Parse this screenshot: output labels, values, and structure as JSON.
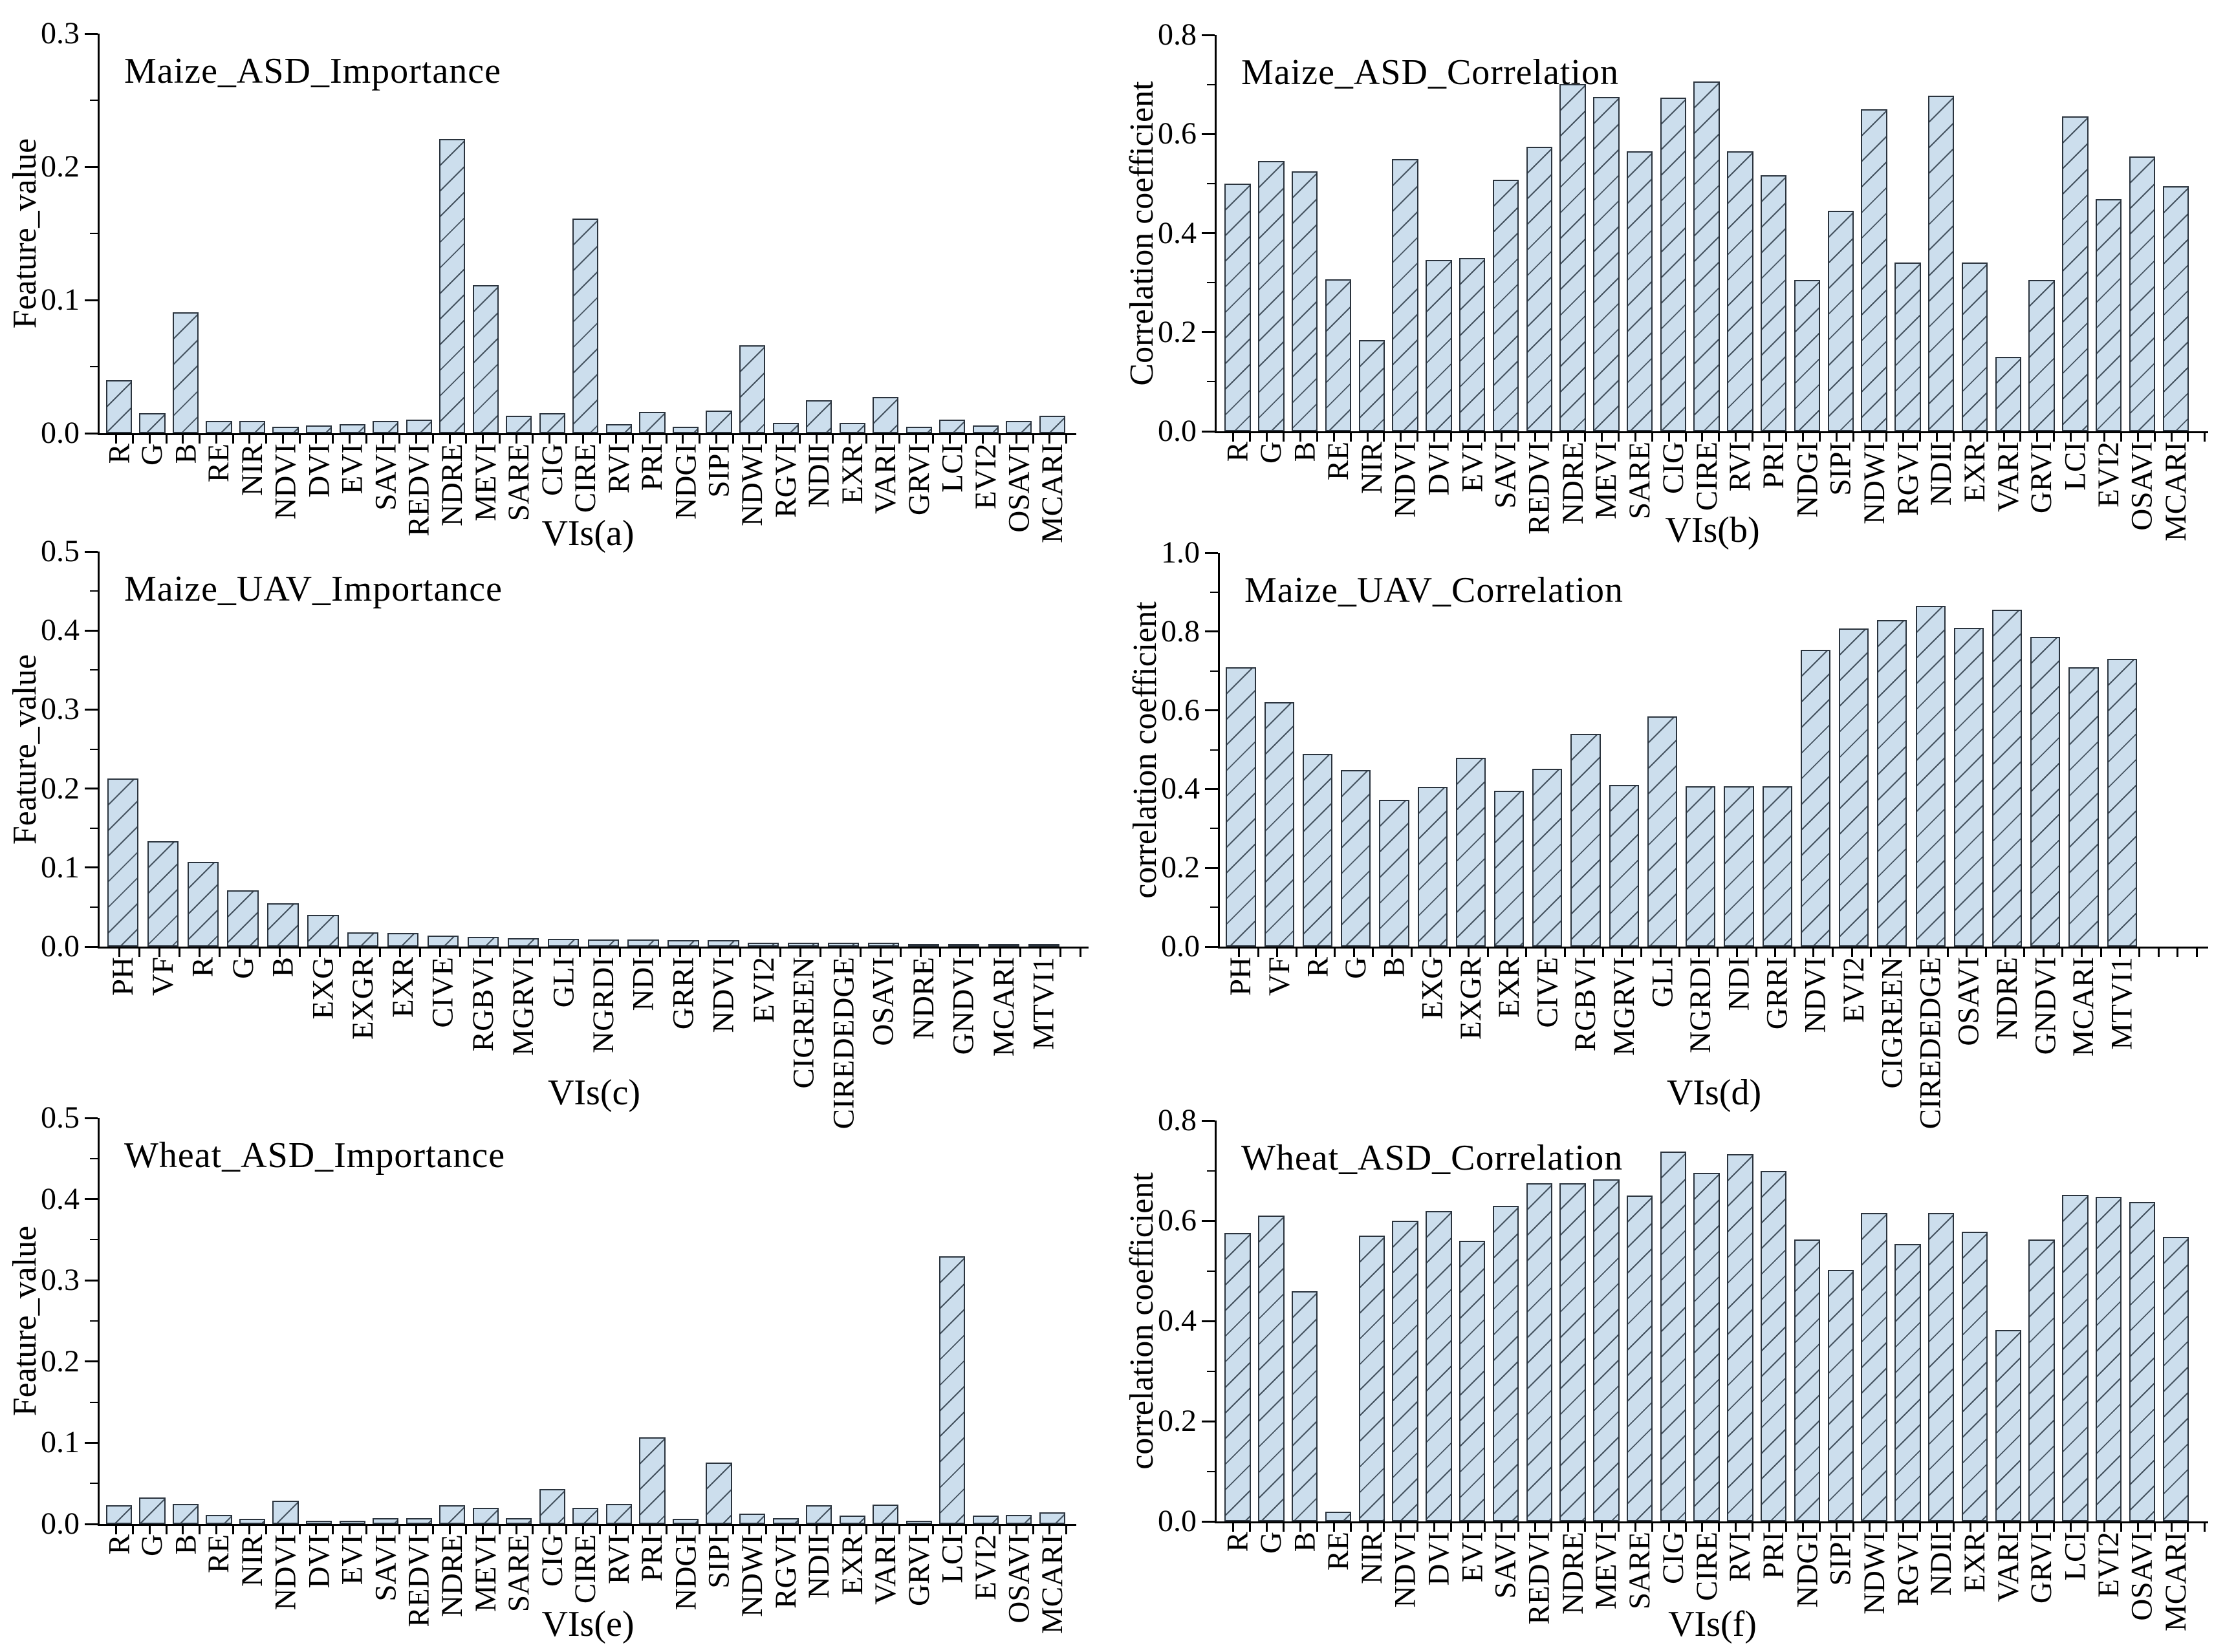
{
  "figure": {
    "description_title": "Feature importance and correlation coefficient bar charts for vegetation indices (VIs)",
    "background": "#ffffff"
  },
  "style": {
    "bar_fill": "#ccdeed",
    "bar_edge": "#2a333d",
    "hatch_color": "#44525f",
    "axis_color": "#000000",
    "text_color": "#000000"
  },
  "chart_data": [
    {
      "id": "a",
      "type": "bar",
      "title": "Maize_ASD_Importance",
      "ylabel": "Feature_value",
      "xlabel": "VIs(a)",
      "ylim": [
        0,
        0.3
      ],
      "ytick_step": 0.1,
      "grid": false,
      "legend": "none",
      "categories": [
        "R",
        "G",
        "B",
        "RE",
        "NIR",
        "NDVI",
        "DVI",
        "EVI",
        "SAVI",
        "REDVI",
        "NDRE",
        "MEVI",
        "SARE",
        "CIG",
        "CIRE",
        "RVI",
        "PRI",
        "NDGI",
        "SIPI",
        "NDWI",
        "RGVI",
        "NDII",
        "EXR",
        "VARI",
        "GRVI",
        "LCI",
        "EVI2",
        "OSAVI",
        "MCARI"
      ],
      "values": [
        0.04,
        0.015,
        0.091,
        0.009,
        0.009,
        0.005,
        0.006,
        0.007,
        0.009,
        0.01,
        0.221,
        0.111,
        0.013,
        0.015,
        0.161,
        0.007,
        0.016,
        0.005,
        0.017,
        0.066,
        0.008,
        0.025,
        0.008,
        0.027,
        0.005,
        0.01,
        0.006,
        0.009,
        0.013
      ]
    },
    {
      "id": "b",
      "type": "bar",
      "title": "Maize_ASD_Correlation",
      "ylabel": "Correlation coefficient",
      "xlabel": "VIs(b)",
      "ylim": [
        0,
        0.8
      ],
      "ytick_step": 0.2,
      "grid": false,
      "legend": "none",
      "categories": [
        "R",
        "G",
        "B",
        "RE",
        "NIR",
        "NDVI",
        "DVI",
        "EVI",
        "SAVI",
        "REDVI",
        "NDRE",
        "MEVI",
        "SARE",
        "CIG",
        "CIRE",
        "RVI",
        "PRI",
        "NDGI",
        "SIPI",
        "NDWI",
        "RGVI",
        "NDII",
        "EXR",
        "VARI",
        "GRVI",
        "LCI",
        "EVI2",
        "OSAVI",
        "MCARI"
      ],
      "values": [
        0.5,
        0.545,
        0.525,
        0.307,
        0.184,
        0.549,
        0.346,
        0.35,
        0.508,
        0.574,
        0.701,
        0.675,
        0.565,
        0.673,
        0.706,
        0.565,
        0.517,
        0.306,
        0.445,
        0.65,
        0.34,
        0.677,
        0.341,
        0.15,
        0.306,
        0.636,
        0.468,
        0.555,
        0.494
      ]
    },
    {
      "id": "c",
      "type": "bar",
      "title": "Maize_UAV_Importance",
      "ylabel": "Feature_value",
      "xlabel": "VIs(c)",
      "ylim": [
        0,
        0.5
      ],
      "ytick_step": 0.1,
      "grid": false,
      "legend": "none",
      "categories": [
        "PH",
        "VF",
        "R",
        "G",
        "B",
        "EXG",
        "EXGR",
        "EXR",
        "CIVE",
        "RGBVI",
        "MGRVI",
        "GLI",
        "NGRDI",
        "NDI",
        "GRRI",
        "NDVI",
        "EVI2",
        "CIGREEN",
        "CIREDEDGE",
        "OSAVI",
        "NDRE",
        "GNDVI",
        "MCARI",
        "MTVI1"
      ],
      "values": [
        0.213,
        0.133,
        0.107,
        0.071,
        0.055,
        0.04,
        0.018,
        0.017,
        0.014,
        0.012,
        0.011,
        0.01,
        0.009,
        0.009,
        0.008,
        0.008,
        0.005,
        0.005,
        0.005,
        0.005,
        0.003,
        0.003,
        0.003,
        0.002
      ]
    },
    {
      "id": "d",
      "type": "bar",
      "title": "Maize_UAV_Correlation",
      "ylabel": "correlation coefficient",
      "xlabel": "VIs(d)",
      "ylim": [
        0,
        1.0
      ],
      "ytick_step": 0.2,
      "grid": false,
      "legend": "none",
      "categories": [
        "PH",
        "VF",
        "R",
        "G",
        "B",
        "EXG",
        "EXGR",
        "EXR",
        "CIVE",
        "RGBVI",
        "MGRVI",
        "GLI",
        "NGRDI",
        "NDI",
        "GRRI",
        "NDVI",
        "EVI2",
        "CIGREEN",
        "CIREDEDGE",
        "OSAVI",
        "NDRE",
        "GNDVI",
        "MCARI",
        "MTVI1"
      ],
      "values": [
        0.71,
        0.62,
        0.49,
        0.448,
        0.373,
        0.405,
        0.48,
        0.396,
        0.451,
        0.541,
        0.41,
        0.584,
        0.408,
        0.408,
        0.408,
        0.753,
        0.808,
        0.83,
        0.866,
        0.81,
        0.855,
        0.786,
        0.71,
        0.73
      ]
    },
    {
      "id": "e",
      "type": "bar",
      "title": "Wheat_ASD_Importance",
      "ylabel": "Feature_value",
      "xlabel": "VIs(e)",
      "ylim": [
        0,
        0.5
      ],
      "ytick_step": 0.1,
      "grid": false,
      "legend": "none",
      "categories": [
        "R",
        "G",
        "B",
        "RE",
        "NIR",
        "NDVI",
        "DVI",
        "EVI",
        "SAVI",
        "REDVI",
        "NDRE",
        "MEVI",
        "SARE",
        "CIG",
        "CIRE",
        "RVI",
        "PRI",
        "NDGI",
        "SIPI",
        "NDWI",
        "RGVI",
        "NDII",
        "EXR",
        "VARI",
        "GRVI",
        "LCI",
        "EVI2",
        "OSAVI",
        "MCARI"
      ],
      "values": [
        0.023,
        0.033,
        0.025,
        0.011,
        0.006,
        0.029,
        0.004,
        0.004,
        0.007,
        0.007,
        0.023,
        0.02,
        0.007,
        0.043,
        0.02,
        0.025,
        0.107,
        0.006,
        0.076,
        0.013,
        0.007,
        0.023,
        0.01,
        0.024,
        0.004,
        0.33,
        0.01,
        0.011,
        0.014
      ]
    },
    {
      "id": "f",
      "type": "bar",
      "title": "Wheat_ASD_Correlation",
      "ylabel": "correlation coefficient",
      "xlabel": "VIs(f)",
      "ylim": [
        0,
        0.8
      ],
      "ytick_step": 0.2,
      "grid": false,
      "legend": "none",
      "categories": [
        "R",
        "G",
        "B",
        "RE",
        "NIR",
        "NDVI",
        "DVI",
        "EVI",
        "SAVI",
        "REDVI",
        "NDRE",
        "MEVI",
        "SARE",
        "CIG",
        "CIRE",
        "RVI",
        "PRI",
        "NDGI",
        "SIPI",
        "NDWI",
        "RGVI",
        "NDII",
        "EXR",
        "VARI",
        "GRVI",
        "LCI",
        "EVI2",
        "OSAVI",
        "MCARI"
      ],
      "values": [
        0.575,
        0.61,
        0.46,
        0.02,
        0.57,
        0.6,
        0.62,
        0.56,
        0.63,
        0.675,
        0.675,
        0.682,
        0.65,
        0.738,
        0.695,
        0.733,
        0.7,
        0.563,
        0.502,
        0.616,
        0.553,
        0.615,
        0.578,
        0.382,
        0.562,
        0.651,
        0.648,
        0.638,
        0.568
      ]
    }
  ]
}
